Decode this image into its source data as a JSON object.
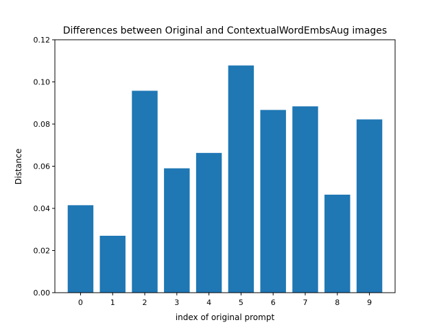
{
  "chart_data": {
    "type": "bar",
    "title": "Differences between Original and ContextualWordEmbsAug images",
    "xlabel": "index of original prompt",
    "ylabel": "Distance",
    "categories": [
      "0",
      "1",
      "2",
      "3",
      "4",
      "5",
      "6",
      "7",
      "8",
      "9"
    ],
    "values": [
      0.0415,
      0.027,
      0.0958,
      0.059,
      0.0663,
      0.1078,
      0.0867,
      0.0884,
      0.0465,
      0.0822
    ],
    "ylim": [
      0,
      0.12
    ],
    "yticks": [
      "0.00",
      "0.02",
      "0.04",
      "0.06",
      "0.08",
      "0.10",
      "0.12"
    ],
    "grid": false,
    "bar_color": "#1f77b4"
  }
}
